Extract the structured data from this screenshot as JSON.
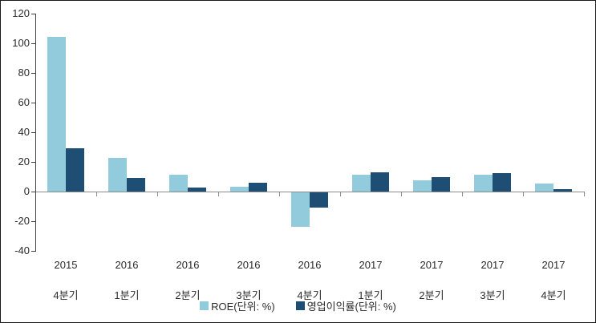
{
  "chart_data": {
    "type": "bar",
    "title": "",
    "xlabel": "",
    "ylabel": "",
    "categories": [
      {
        "line1": "2015",
        "line2": "4분기"
      },
      {
        "line1": "2016",
        "line2": "1분기"
      },
      {
        "line1": "2016",
        "line2": "2분기"
      },
      {
        "line1": "2016",
        "line2": "3분기"
      },
      {
        "line1": "2016",
        "line2": "4분기"
      },
      {
        "line1": "2017",
        "line2": "1분기"
      },
      {
        "line1": "2017",
        "line2": "2분기"
      },
      {
        "line1": "2017",
        "line2": "3분기"
      },
      {
        "line1": "2017",
        "line2": "4분기"
      }
    ],
    "series": [
      {
        "name": "ROE(단위: %)",
        "color": "#92CBDC",
        "values": [
          104.5,
          22.5,
          11.5,
          3,
          -23,
          11.5,
          7.5,
          11.5,
          5.5
        ]
      },
      {
        "name": "영업이익률(단위: %)",
        "color": "#1F4E74",
        "values": [
          29,
          9,
          2.5,
          6,
          -10,
          13,
          9.5,
          12.5,
          1.5
        ]
      }
    ],
    "ylim": [
      -40,
      120
    ],
    "ytick_step": 20,
    "ytick_labels": [
      "-40",
      "-20",
      "0",
      "20",
      "40",
      "60",
      "80",
      "100",
      "120"
    ],
    "grid": false,
    "legend_position": "bottom"
  },
  "colors": {
    "plot_background": "#ffffff",
    "border": "#1a1a1a",
    "y_axis_line": "#404040",
    "x_axis_line": "#8c8c8c",
    "text": "#2b2b2b"
  }
}
